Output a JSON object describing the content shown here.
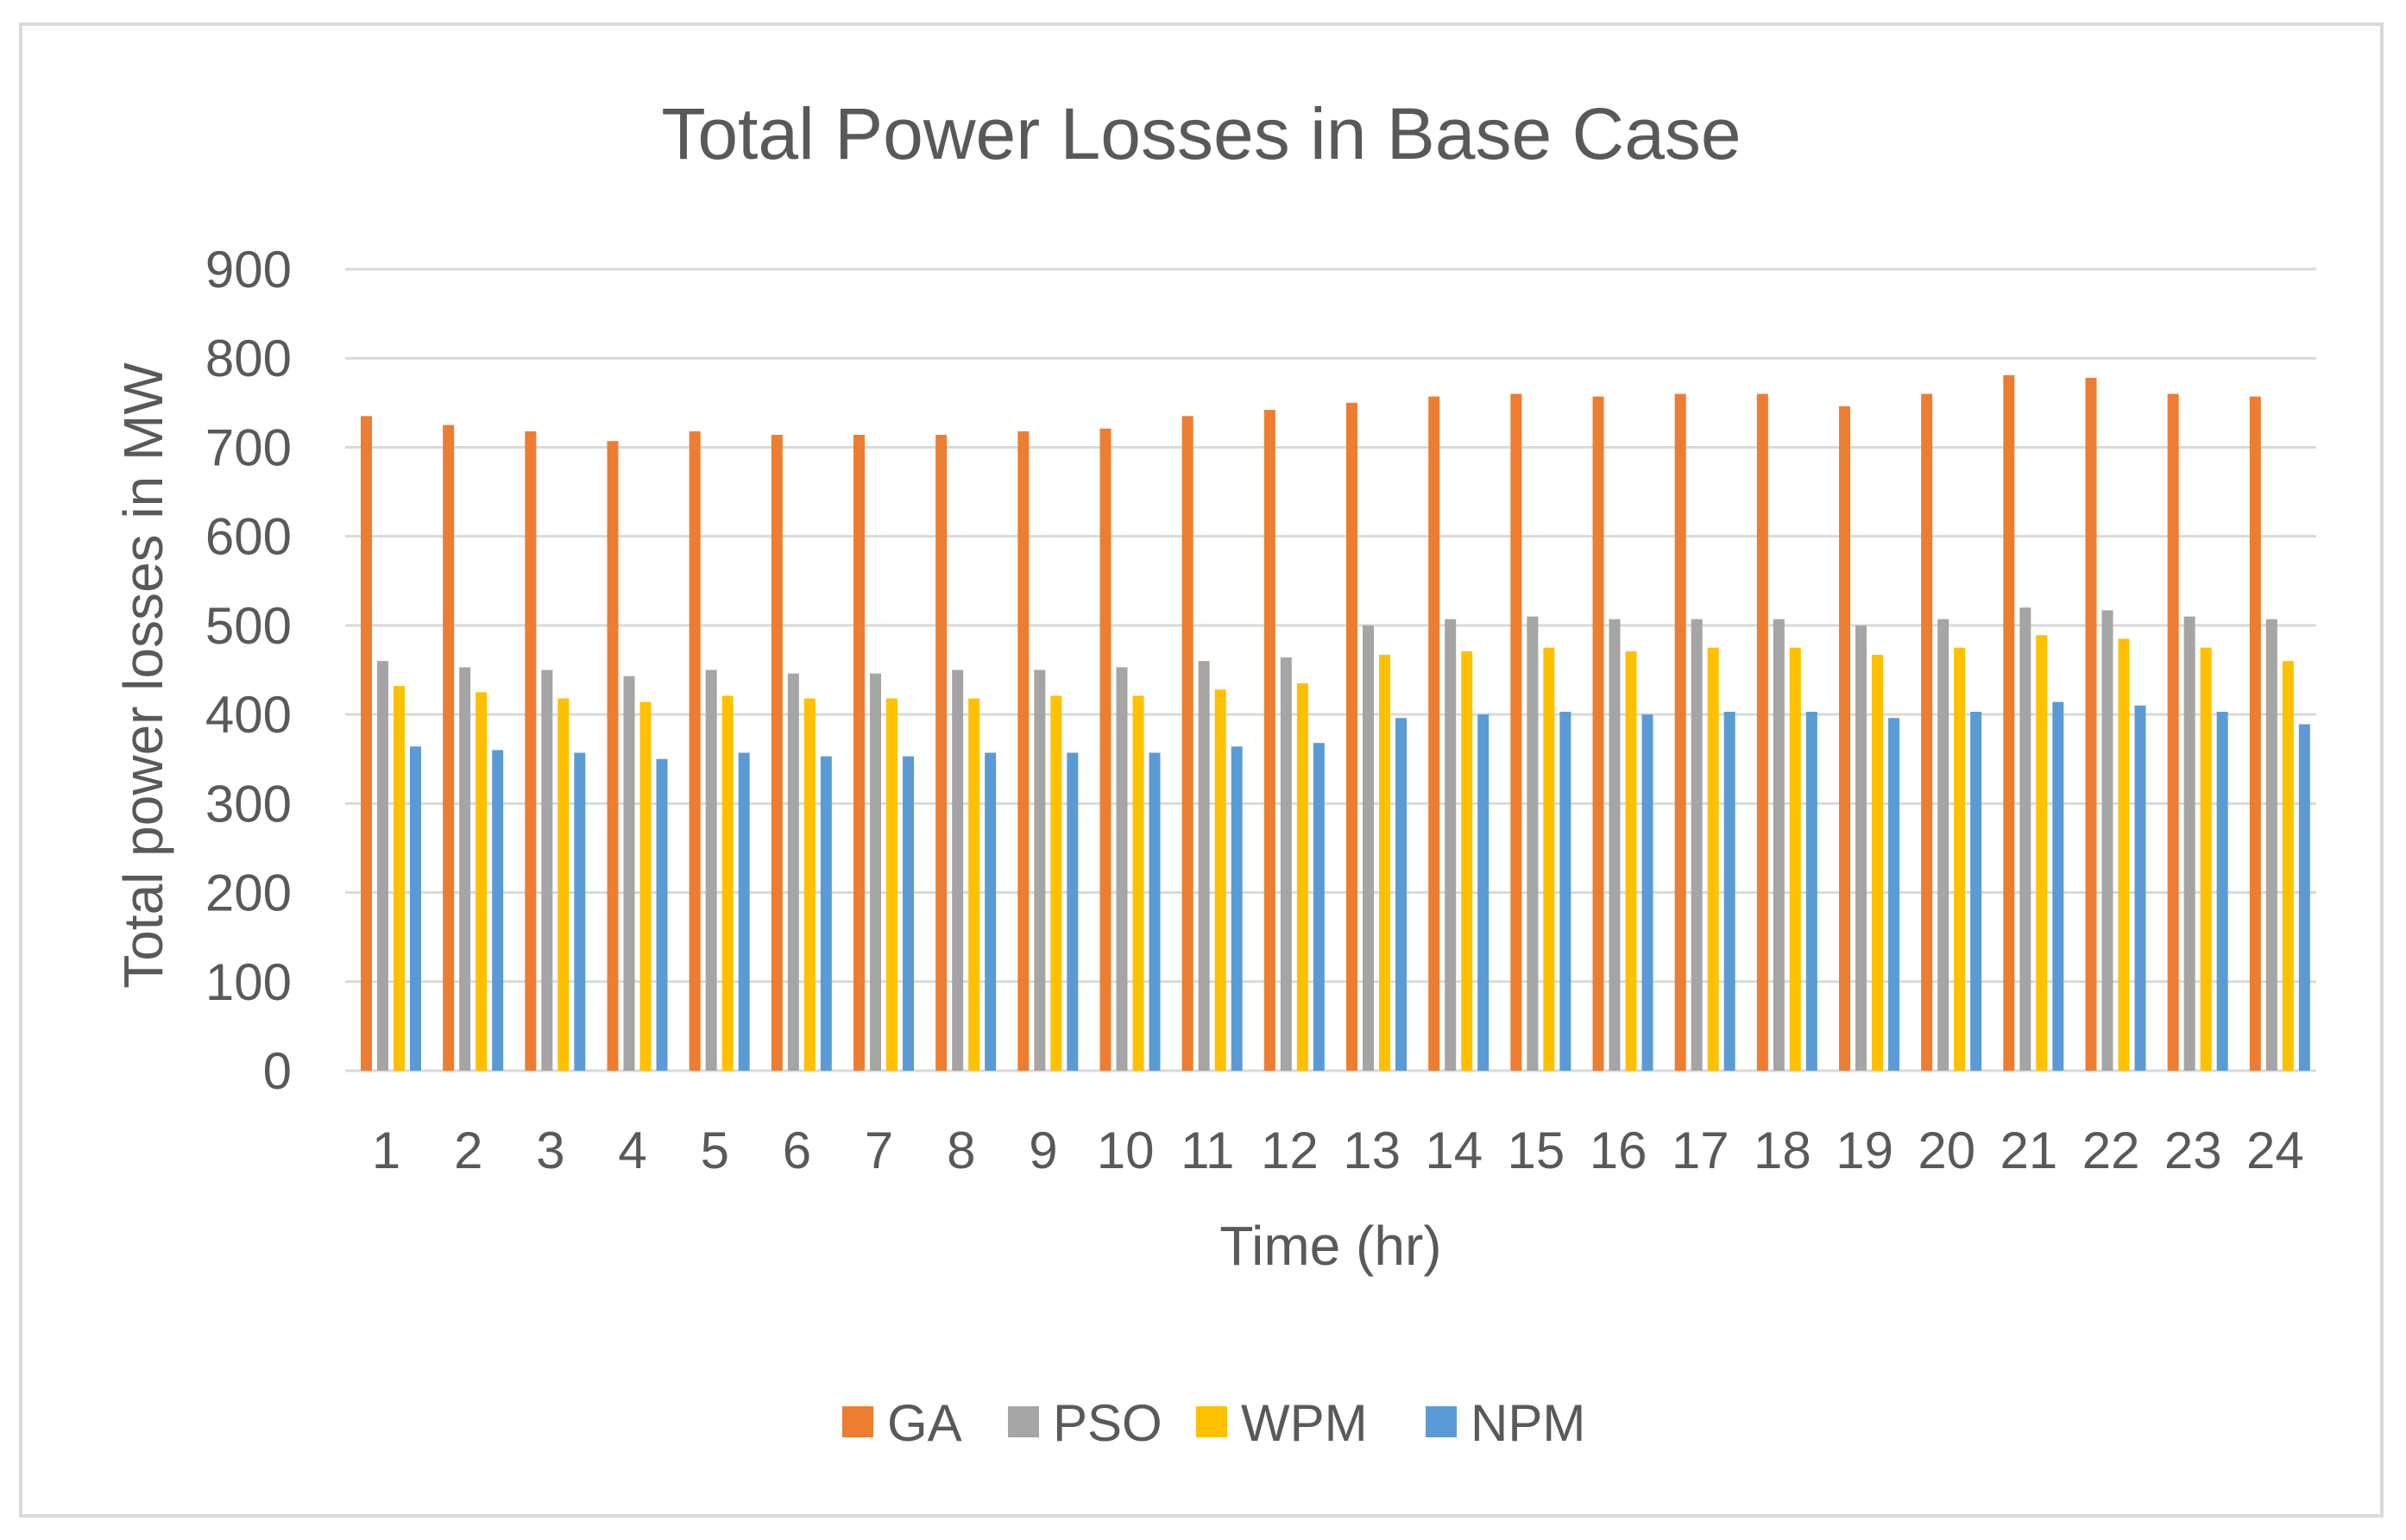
{
  "chart_data": {
    "type": "bar",
    "title": "Total Power Losses in Base Case",
    "xlabel": "Time (hr)",
    "ylabel": "Total power losses in MW",
    "ylim": [
      0,
      900
    ],
    "yticks": [
      0,
      100,
      200,
      300,
      400,
      500,
      600,
      700,
      800,
      900
    ],
    "grid": true,
    "legend_position": "bottom",
    "categories": [
      "1",
      "2",
      "3",
      "4",
      "5",
      "6",
      "7",
      "8",
      "9",
      "10",
      "11",
      "12",
      "13",
      "14",
      "15",
      "16",
      "17",
      "18",
      "19",
      "20",
      "21",
      "22",
      "23",
      "24"
    ],
    "series": [
      {
        "name": "GA",
        "color": "#ED7D31",
        "values": [
          735,
          725,
          718,
          707,
          718,
          714,
          714,
          714,
          718,
          721,
          735,
          742,
          750,
          757,
          760,
          757,
          760,
          760,
          746,
          760,
          781,
          778,
          760,
          757
        ]
      },
      {
        "name": "PSO",
        "color": "#A5A5A5",
        "values": [
          460,
          453,
          450,
          443,
          450,
          446,
          446,
          450,
          450,
          453,
          460,
          464,
          500,
          507,
          510,
          507,
          507,
          507,
          500,
          507,
          520,
          517,
          510,
          507
        ]
      },
      {
        "name": "WPM",
        "color": "#FFC000",
        "values": [
          432,
          425,
          418,
          414,
          421,
          418,
          418,
          418,
          421,
          421,
          428,
          435,
          467,
          471,
          475,
          471,
          475,
          475,
          467,
          475,
          489,
          485,
          475,
          460
        ]
      },
      {
        "name": "NPM",
        "color": "#5B9BD5",
        "values": [
          364,
          360,
          357,
          350,
          357,
          353,
          353,
          357,
          357,
          357,
          364,
          368,
          396,
          400,
          403,
          400,
          403,
          403,
          396,
          403,
          414,
          410,
          403,
          389
        ]
      }
    ]
  }
}
